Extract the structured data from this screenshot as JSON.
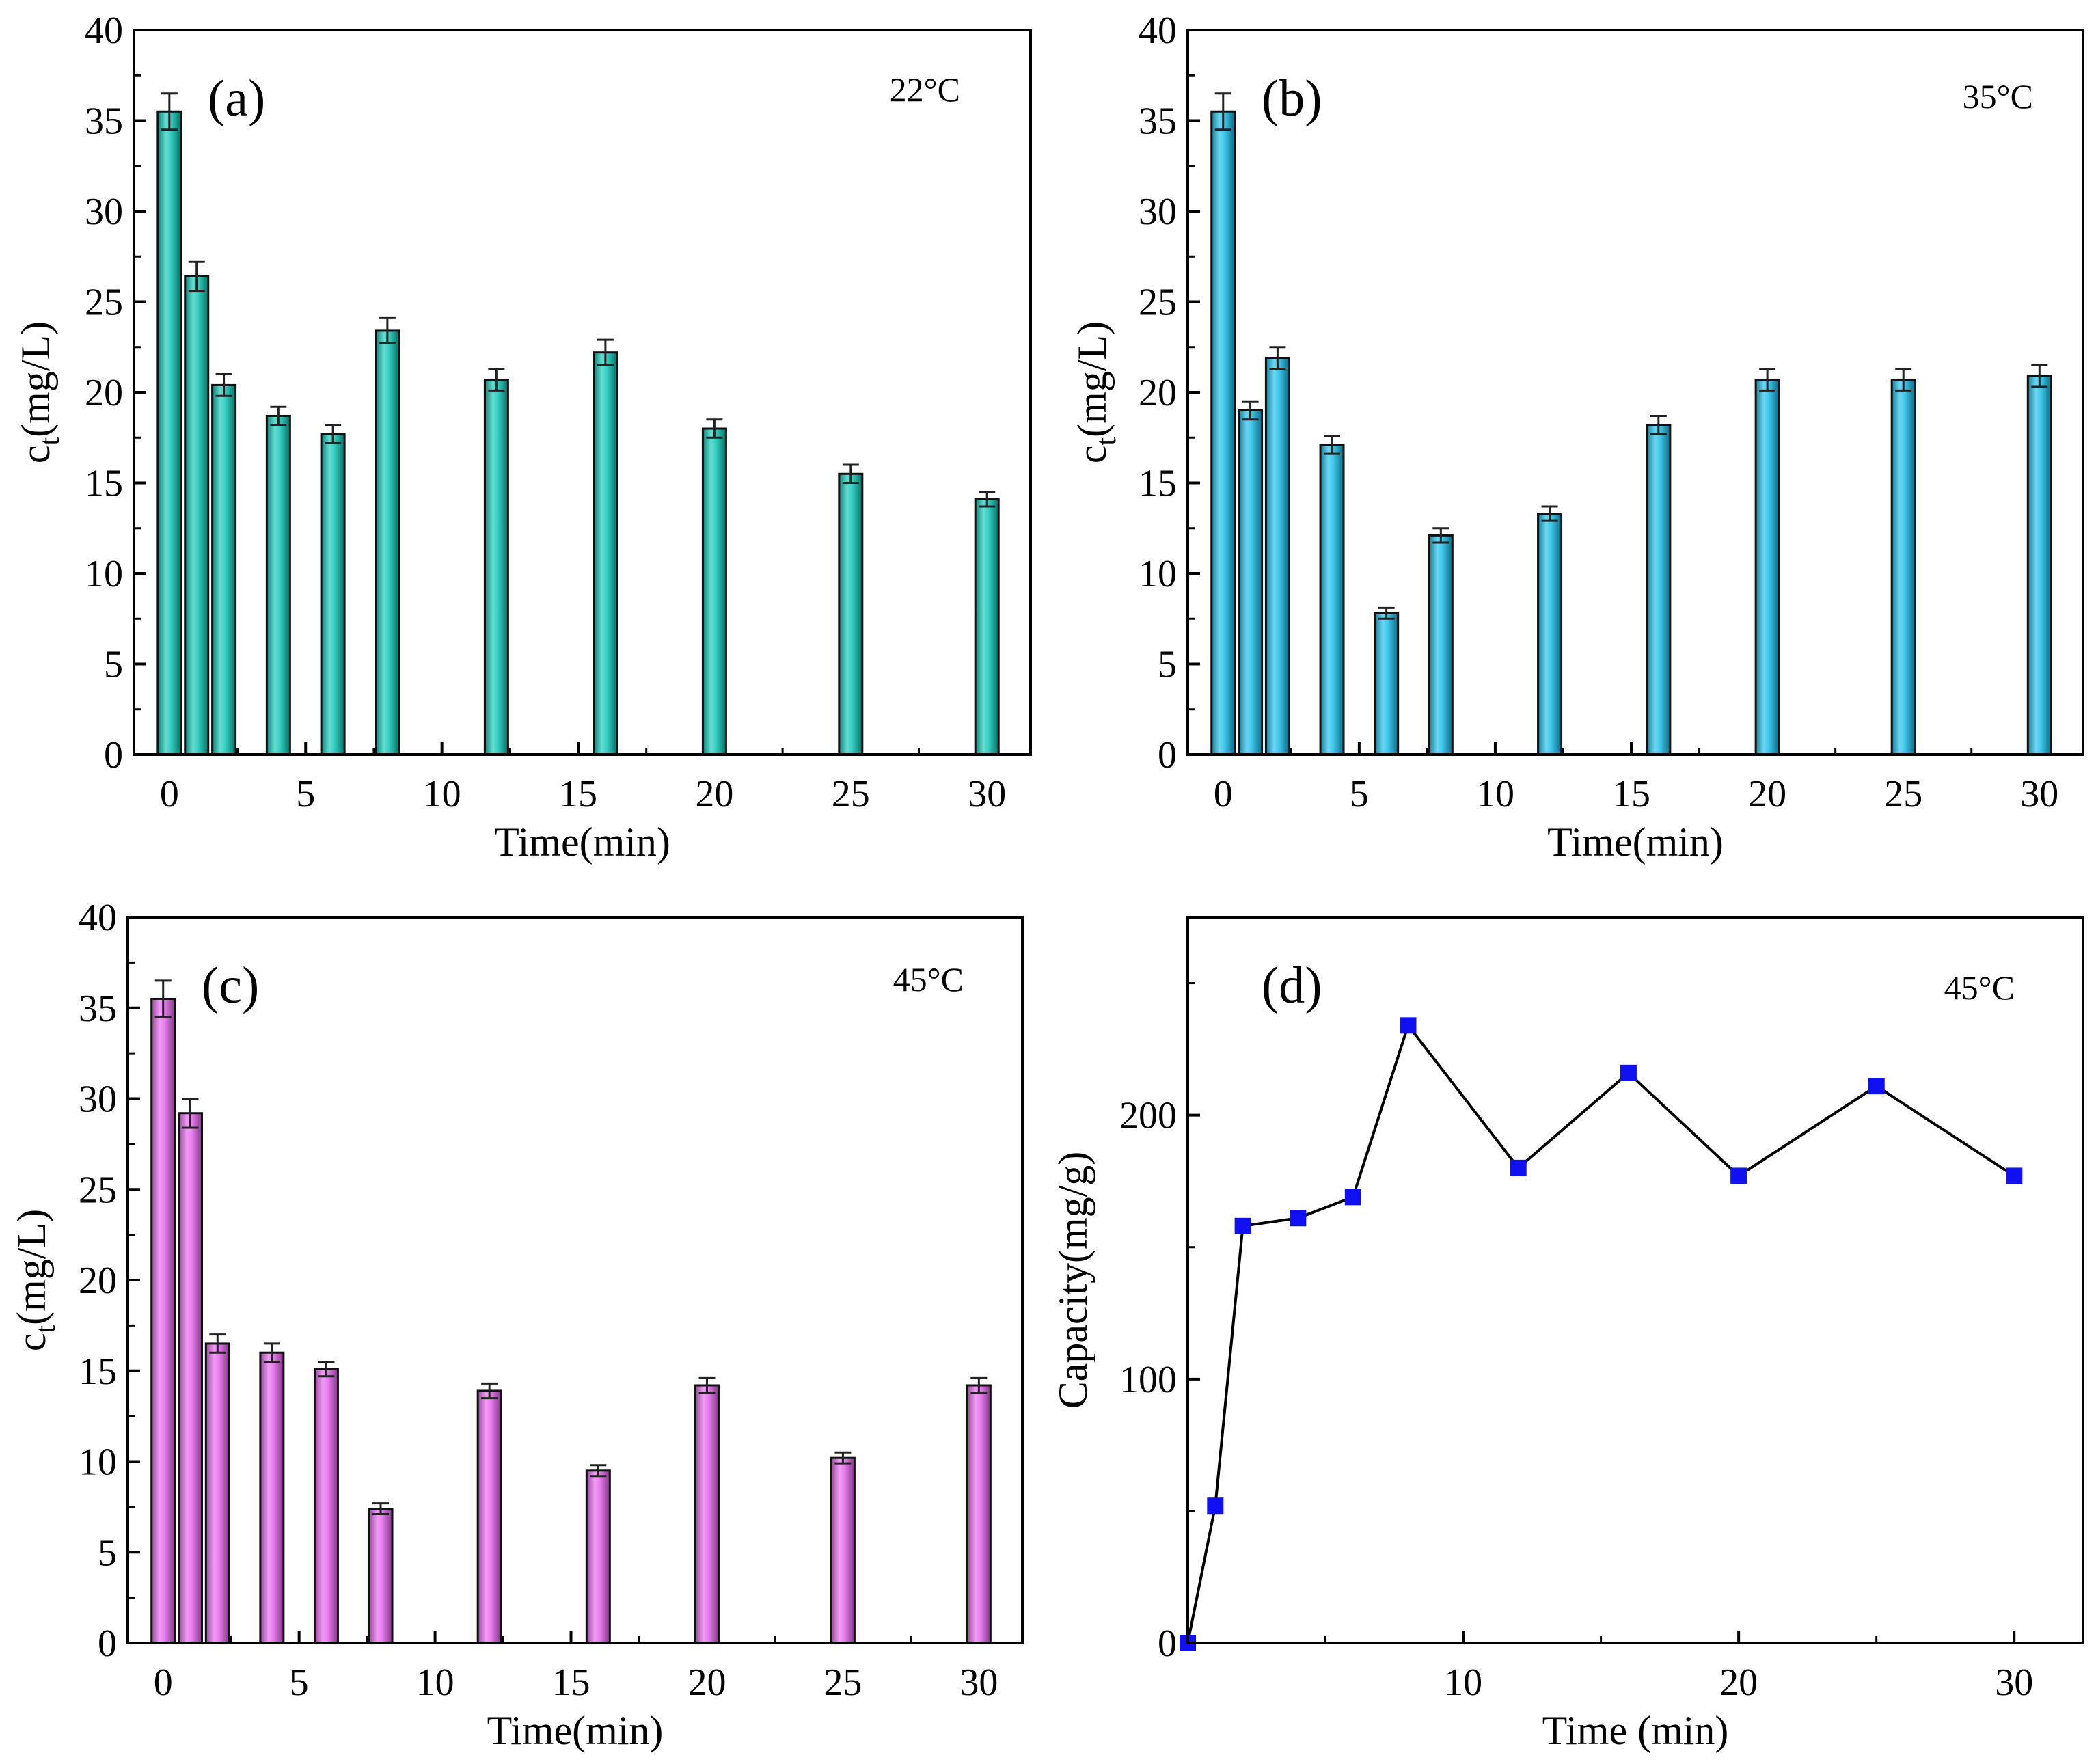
{
  "figure": {
    "colors": {
      "cyan_bar": "#13c9b8",
      "blue_bar": "#1ec0ea",
      "magenta_bar": "#e768ee",
      "line": "#000000",
      "marker": "#1010f0"
    }
  },
  "chart_data": [
    {
      "type": "bar",
      "panel_label": "(a)",
      "annotation": "22°C",
      "bar_color": "#13c9b8",
      "xlabel": "Time(min)",
      "ylabel_main": "c",
      "ylabel_sub": "t",
      "ylabel_rest": "(mg/L)",
      "xlim": [
        -1.3,
        31.6
      ],
      "ylim": [
        0,
        40
      ],
      "xticks": [
        0,
        5,
        10,
        15,
        20,
        25,
        30
      ],
      "yticks": [
        0,
        5,
        10,
        15,
        20,
        25,
        30,
        35,
        40
      ],
      "x": [
        0,
        1,
        2,
        4,
        6,
        8,
        12,
        16,
        20,
        25,
        30
      ],
      "values": [
        35.5,
        26.4,
        20.4,
        18.7,
        17.7,
        23.4,
        20.7,
        22.2,
        18.0,
        15.5,
        14.1
      ],
      "errors": [
        1.0,
        0.8,
        0.6,
        0.5,
        0.5,
        0.7,
        0.6,
        0.7,
        0.5,
        0.5,
        0.4
      ],
      "tick_labels_x": [
        "0",
        "5",
        "10",
        "15",
        "20",
        "25",
        "30"
      ],
      "tick_labels_y": [
        "0",
        "5",
        "10",
        "15",
        "20",
        "25",
        "30",
        "35",
        "40"
      ]
    },
    {
      "type": "bar",
      "panel_label": "(b)",
      "annotation": "35°C",
      "bar_color": "#1ec0ea",
      "xlabel": "Time(min)",
      "ylabel_main": "c",
      "ylabel_sub": "t",
      "ylabel_rest": "(mg/L)",
      "xlim": [
        -1.3,
        31.6
      ],
      "ylim": [
        0,
        40
      ],
      "xticks": [
        0,
        5,
        10,
        15,
        20,
        25,
        30
      ],
      "yticks": [
        0,
        5,
        10,
        15,
        20,
        25,
        30,
        35,
        40
      ],
      "x": [
        0,
        1,
        2,
        4,
        6,
        8,
        12,
        16,
        20,
        25,
        30
      ],
      "values": [
        35.5,
        19.0,
        21.9,
        17.1,
        7.8,
        12.1,
        13.3,
        18.2,
        20.7,
        20.7,
        20.9
      ],
      "errors": [
        1.0,
        0.5,
        0.6,
        0.5,
        0.3,
        0.4,
        0.4,
        0.5,
        0.6,
        0.6,
        0.6
      ],
      "tick_labels_x": [
        "0",
        "5",
        "10",
        "15",
        "20",
        "25",
        "30"
      ],
      "tick_labels_y": [
        "0",
        "5",
        "10",
        "15",
        "20",
        "25",
        "30",
        "35",
        "40"
      ]
    },
    {
      "type": "bar",
      "panel_label": "(c)",
      "annotation": "45°C",
      "bar_color": "#e768ee",
      "xlabel": "Time(min)",
      "ylabel_main": "c",
      "ylabel_sub": "t",
      "ylabel_rest": "(mg/L)",
      "xlim": [
        -1.3,
        31.6
      ],
      "ylim": [
        0,
        40
      ],
      "xticks": [
        0,
        5,
        10,
        15,
        20,
        25,
        30
      ],
      "yticks": [
        0,
        5,
        10,
        15,
        20,
        25,
        30,
        35,
        40
      ],
      "x": [
        0,
        1,
        2,
        4,
        6,
        8,
        12,
        16,
        20,
        25,
        30
      ],
      "values": [
        35.5,
        29.2,
        16.5,
        16.0,
        15.1,
        7.4,
        13.9,
        9.5,
        14.2,
        10.2,
        14.2
      ],
      "errors": [
        1.0,
        0.8,
        0.5,
        0.5,
        0.4,
        0.3,
        0.4,
        0.3,
        0.4,
        0.3,
        0.4
      ],
      "tick_labels_x": [
        "0",
        "5",
        "10",
        "15",
        "20",
        "25",
        "30"
      ],
      "tick_labels_y": [
        "0",
        "5",
        "10",
        "15",
        "20",
        "25",
        "30",
        "35",
        "40"
      ]
    },
    {
      "type": "line",
      "panel_label": "(d)",
      "annotation": "45°C",
      "line_color": "#000000",
      "marker_color": "#1010f0",
      "xlabel": "Time (min)",
      "ylabel": "Capacity(mg/g)",
      "xlim": [
        0,
        32.5
      ],
      "ylim": [
        0,
        275
      ],
      "xticks": [
        10,
        20,
        30
      ],
      "yticks": [
        0,
        100,
        200
      ],
      "x": [
        0,
        1,
        2,
        4,
        6,
        8,
        12,
        16,
        20,
        25,
        30
      ],
      "values": [
        0,
        52,
        158,
        161,
        169,
        234,
        180,
        216,
        177,
        211,
        177
      ],
      "tick_labels_x": [
        "10",
        "20",
        "30"
      ],
      "tick_labels_y": [
        "0",
        "100",
        "200"
      ]
    }
  ]
}
